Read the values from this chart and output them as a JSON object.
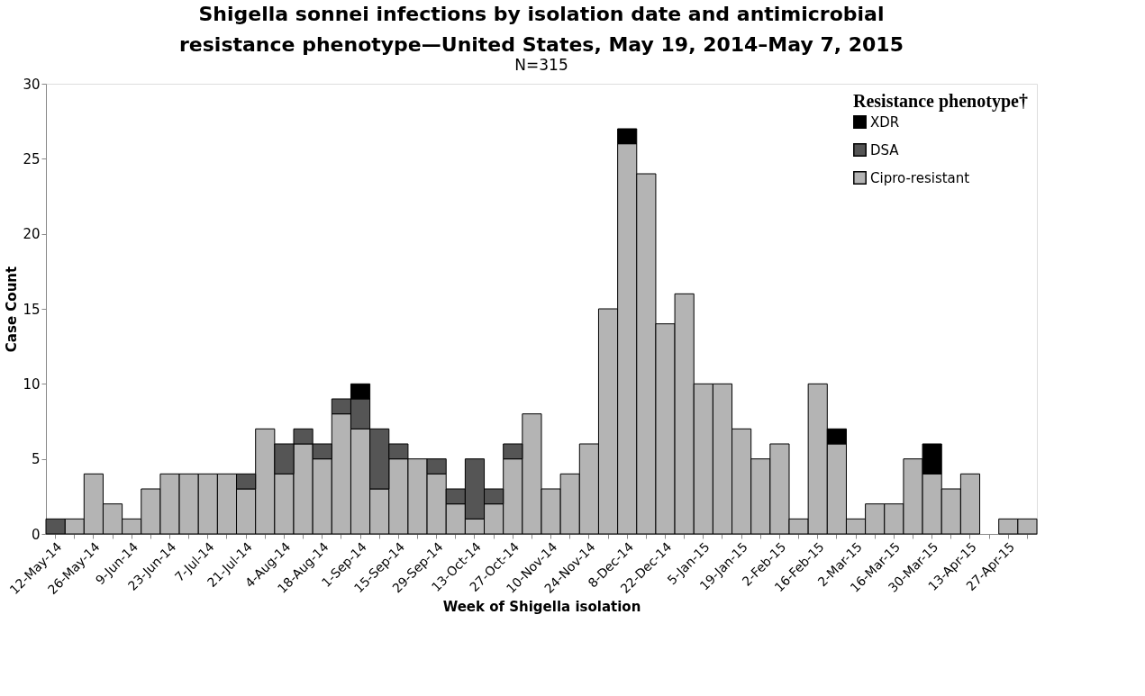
{
  "chart_data": {
    "type": "bar",
    "stacked": true,
    "title": "Shigella sonnei infections by isolation date and antimicrobial resistance phenotype—United States, May 19, 2014–May 7, 2015",
    "subtitle": "N=315",
    "xlabel": "Week of Shigella isolation",
    "ylabel": "Case Count",
    "legend_title": "Resistance phenotype†",
    "categories": [
      "12-May-14",
      null,
      "26-May-14",
      null,
      "9-Jun-14",
      null,
      "23-Jun-14",
      null,
      "7-Jul-14",
      null,
      "21-Jul-14",
      null,
      "4-Aug-14",
      null,
      "18-Aug-14",
      null,
      "1-Sep-14",
      null,
      "15-Sep-14",
      null,
      "29-Sep-14",
      null,
      "13-Oct-14",
      null,
      "27-Oct-14",
      null,
      "10-Nov-14",
      null,
      "24-Nov-14",
      null,
      "8-Dec-14",
      null,
      "22-Dec-14",
      null,
      "5-Jan-15",
      null,
      "19-Jan-15",
      null,
      "2-Feb-15",
      null,
      "16-Feb-15",
      null,
      "2-Mar-15",
      null,
      "16-Mar-15",
      null,
      "30-Mar-15",
      null,
      "13-Apr-15",
      null,
      "27-Apr-15",
      null
    ],
    "series": [
      {
        "name": "Cipro-resistant",
        "color": "#b4b4b4",
        "values": [
          0,
          1,
          4,
          2,
          1,
          3,
          4,
          4,
          4,
          4,
          3,
          7,
          4,
          6,
          5,
          8,
          7,
          3,
          5,
          5,
          4,
          2,
          1,
          2,
          5,
          8,
          3,
          4,
          6,
          15,
          26,
          24,
          14,
          16,
          10,
          10,
          7,
          5,
          6,
          1,
          10,
          6,
          1,
          2,
          2,
          5,
          4,
          3,
          4,
          0,
          1,
          1
        ]
      },
      {
        "name": "DSA",
        "color": "#555555",
        "values": [
          1,
          0,
          0,
          0,
          0,
          0,
          0,
          0,
          0,
          0,
          1,
          0,
          2,
          1,
          1,
          1,
          2,
          4,
          1,
          0,
          1,
          1,
          4,
          1,
          1,
          0,
          0,
          0,
          0,
          0,
          0,
          0,
          0,
          0,
          0,
          0,
          0,
          0,
          0,
          0,
          0,
          0,
          0,
          0,
          0,
          0,
          0,
          0,
          0,
          0,
          0,
          0
        ]
      },
      {
        "name": "XDR",
        "color": "#000000",
        "values": [
          0,
          0,
          0,
          0,
          0,
          0,
          0,
          0,
          0,
          0,
          0,
          0,
          0,
          0,
          0,
          0,
          1,
          0,
          0,
          0,
          0,
          0,
          0,
          0,
          0,
          0,
          0,
          0,
          0,
          0,
          1,
          0,
          0,
          0,
          0,
          0,
          0,
          0,
          0,
          0,
          0,
          1,
          0,
          0,
          0,
          0,
          2,
          0,
          0,
          0,
          0,
          0
        ]
      }
    ],
    "ylim": [
      0,
      30
    ],
    "yticks": [
      0,
      5,
      10,
      15,
      20,
      25,
      30
    ],
    "grid": false,
    "legend": "top right"
  }
}
